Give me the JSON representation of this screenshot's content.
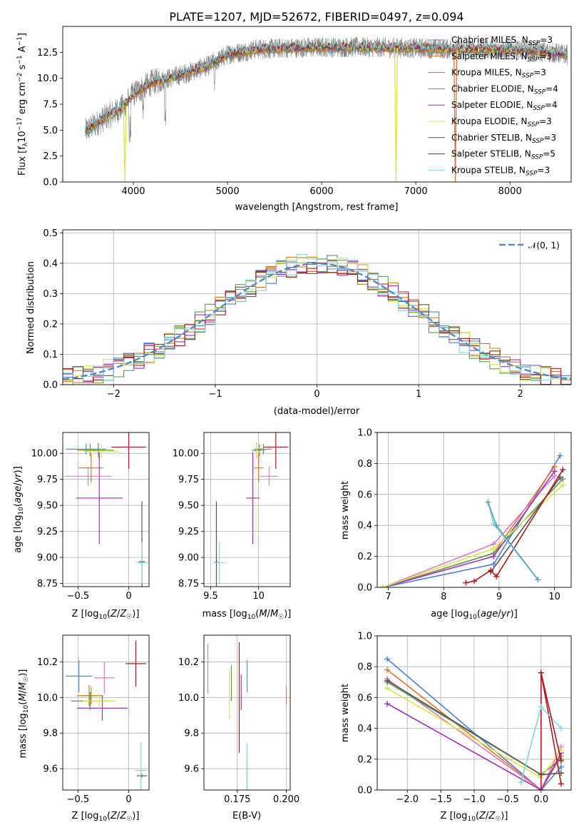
{
  "figure": {
    "title": "PLATE=1207, MJD=52672, FIBERID=0497, z=0.094",
    "models": [
      {
        "name": "Chabrier MILES",
        "nssp": 3,
        "color": "#4e97c7"
      },
      {
        "name": "Salpeter MILES",
        "nssp": 3,
        "color": "#e8732a"
      },
      {
        "name": "Kroupa MILES",
        "nssp": 3,
        "color": "#b8860b"
      },
      {
        "name": "Chabrier ELODIE",
        "nssp": 4,
        "color": "#5e9a56"
      },
      {
        "name": "Salpeter ELODIE",
        "nssp": 4,
        "color": "#a12fbf"
      },
      {
        "name": "Kroupa ELODIE",
        "nssp": 3,
        "color": "#d8e64a"
      },
      {
        "name": "Chabrier STELIB",
        "nssp": 3,
        "color": "#555555"
      },
      {
        "name": "Salpeter STELIB",
        "nssp": 5,
        "color": "#b01818"
      },
      {
        "name": "Kroupa STELIB",
        "nssp": 3,
        "color": "#7fd6de"
      }
    ]
  },
  "chart_data": [
    {
      "id": "spectrum",
      "type": "line",
      "xlabel": "wavelength [Angstrom, rest frame]",
      "ylabel": "Flux [f_λ10^-17 erg cm^-2 s^-1 A^-1]",
      "xlim": [
        3250,
        8650
      ],
      "ylim": [
        0,
        15
      ],
      "xticks": [
        4000,
        5000,
        6000,
        7000,
        8000
      ],
      "yticks": [
        "0.0",
        "2.5",
        "5.0",
        "7.5",
        "10.0",
        "12.5"
      ],
      "data_range": [
        3490,
        8610
      ],
      "grid": false,
      "legend_position": "right",
      "legend_entries": [
        "Chabrier MILES, N_SSP=3",
        "Salpeter MILES, N_SSP=3",
        "Kroupa MILES, N_SSP=3",
        "Chabrier ELODIE, N_SSP=4",
        "Salpeter ELODIE, N_SSP=4",
        "Kroupa ELODIE, N_SSP=3",
        "Chabrier STELIB, N_SSP=3",
        "Salpeter STELIB, N_SSP=5",
        "Kroupa STELIB, N_SSP=3"
      ],
      "continuum": [
        [
          3490,
          4.9
        ],
        [
          3700,
          6.2
        ],
        [
          3900,
          7.3
        ],
        [
          4000,
          8.5
        ],
        [
          4200,
          9.6
        ],
        [
          4500,
          10.3
        ],
        [
          4800,
          11.2
        ],
        [
          5000,
          12.3
        ],
        [
          5300,
          12.8
        ],
        [
          5600,
          12.9
        ],
        [
          6000,
          13.0
        ],
        [
          6500,
          13.0
        ],
        [
          7000,
          12.9
        ],
        [
          7500,
          12.8
        ],
        [
          8000,
          12.8
        ],
        [
          8300,
          12.6
        ],
        [
          8610,
          12.3
        ]
      ],
      "drops": [
        {
          "x": 3910,
          "model": "Kroupa ELODIE",
          "bottom": 0.0
        },
        {
          "x": 6790,
          "model": "Kroupa ELODIE",
          "bottom": 0.0
        },
        {
          "x": 7420,
          "model": "Salpeter MILES",
          "bottom": 0.0
        }
      ]
    },
    {
      "id": "residual-histogram",
      "type": "bar",
      "xlabel": "(data-model)/error",
      "ylabel": "Normed distribution",
      "xlim": [
        -2.5,
        2.5
      ],
      "ylim": [
        0,
        0.51
      ],
      "xticks": [
        -2,
        -1,
        0,
        1,
        2
      ],
      "yticks": [
        "0.0",
        "0.1",
        "0.2",
        "0.3",
        "0.4",
        "0.5"
      ],
      "grid": true,
      "legend": "𝒩(0, 1)",
      "reference": {
        "type": "normal",
        "mean": 0,
        "sigma": 1
      }
    },
    {
      "id": "age-vs-Z",
      "type": "scatter",
      "xlabel": "Z [log10(Z/Z☉)]",
      "ylabel": "age  [log10(age/yr)]",
      "xlim": [
        -0.65,
        0.2
      ],
      "ylim": [
        8.72,
        10.2
      ],
      "xticks": [
        -0.5,
        0.0
      ],
      "yticks": [
        "8.75",
        "9.00",
        "9.25",
        "9.50",
        "9.75",
        "10.00"
      ],
      "grid": true,
      "points": [
        {
          "model": "Chabrier MILES",
          "x": -0.42,
          "xerr": 0.2,
          "y": 10.04,
          "yerr": 0.05
        },
        {
          "model": "Salpeter MILES",
          "x": -0.37,
          "xerr": 0.12,
          "y": 9.86,
          "yerr": 0.14
        },
        {
          "model": "Kroupa MILES",
          "x": -0.38,
          "xerr": 0.13,
          "y": 10.03,
          "yerr": 0.06
        },
        {
          "model": "Chabrier ELODIE",
          "x": -0.3,
          "xerr": 0.15,
          "y": 10.03,
          "yerr": 0.07
        },
        {
          "model": "Salpeter ELODIE",
          "x": -0.29,
          "xerr": 0.23,
          "y": 9.57,
          "yerr": 0.44
        },
        {
          "model": "Kroupa ELODIE",
          "x": -0.27,
          "xerr": 0.17,
          "y": 10.02,
          "yerr": 0.07
        },
        {
          "model": "Chabrier STELIB",
          "x": 0.13,
          "xerr": 0.03,
          "y": 8.96,
          "yerr": 0.58
        },
        {
          "model": "Salpeter STELIB",
          "x": 0.0,
          "xerr": 0.17,
          "y": 10.06,
          "yerr": 0.21
        },
        {
          "model": "Kroupa STELIB",
          "x": 0.13,
          "xerr": 0.06,
          "y": 8.95,
          "yerr": 0.2
        },
        {
          "model": "Kroupa STELIB",
          "x": -0.4,
          "xerr": 0.23,
          "y": 9.78,
          "yerr": 0.09,
          "color": "#e377c2"
        }
      ]
    },
    {
      "id": "age-vs-mass",
      "type": "scatter",
      "xlabel": "mass [log10(M/M☉)]",
      "ylabel": "",
      "xlim": [
        9.43,
        10.33
      ],
      "ylim": [
        8.72,
        10.2
      ],
      "xticks": [
        9.5,
        10.0
      ],
      "yticks": [
        "8.75",
        "9.00",
        "9.25",
        "9.50",
        "9.75",
        "10.00"
      ],
      "grid": true,
      "points": [
        {
          "model": "Chabrier MILES",
          "x": 10.05,
          "xerr": 0.09,
          "y": 10.04,
          "yerr": 0.05
        },
        {
          "model": "Salpeter MILES",
          "x": 10.0,
          "xerr": 0.05,
          "y": 9.86,
          "yerr": 0.14
        },
        {
          "model": "Kroupa MILES",
          "x": 10.01,
          "xerr": 0.06,
          "y": 10.03,
          "yerr": 0.06
        },
        {
          "model": "Chabrier ELODIE",
          "x": 9.98,
          "xerr": 0.05,
          "y": 10.03,
          "yerr": 0.07
        },
        {
          "model": "Salpeter ELODIE",
          "x": 9.94,
          "xerr": 0.07,
          "y": 9.57,
          "yerr": 0.44
        },
        {
          "model": "Kroupa ELODIE",
          "x": 9.98,
          "xerr": 0.04,
          "y": 10.02,
          "yerr": 0.07
        },
        {
          "model": "Chabrier STELIB",
          "x": 9.56,
          "xerr": 0.01,
          "y": 8.96,
          "yerr": 0.58
        },
        {
          "model": "Salpeter STELIB",
          "x": 10.18,
          "xerr": 0.13,
          "y": 10.06,
          "yerr": 0.21
        },
        {
          "model": "Kroupa STELIB",
          "x": 9.59,
          "xerr": 0.06,
          "y": 8.95,
          "yerr": 0.2
        },
        {
          "model": "Kroupa STELIB",
          "x": 10.11,
          "xerr": 0.09,
          "y": 9.78,
          "yerr": 0.09,
          "color": "#e377c2"
        }
      ]
    },
    {
      "id": "massweight-vs-age",
      "type": "line",
      "xlabel": "age  [log10(age/yr)]",
      "ylabel": "mass weight",
      "xlim": [
        6.8,
        10.3
      ],
      "ylim": [
        0,
        1.0
      ],
      "xticks": [
        7,
        8,
        9,
        10
      ],
      "yticks": [
        "0.0",
        "0.2",
        "0.4",
        "0.6",
        "0.8",
        "1.0"
      ],
      "grid": true,
      "series": [
        {
          "model": "Chabrier MILES",
          "color": "#4e7fd7",
          "points": [
            [
              6.9,
              0.0
            ],
            [
              8.9,
              0.15
            ],
            [
              10.1,
              0.85
            ]
          ]
        },
        {
          "model": "Salpeter MILES",
          "color": "#e8732a",
          "points": [
            [
              6.9,
              0.0
            ],
            [
              8.9,
              0.22
            ],
            [
              10.0,
              0.78
            ]
          ]
        },
        {
          "model": "Kroupa MILES",
          "color": "#e377c2",
          "points": [
            [
              6.9,
              0.0
            ],
            [
              8.9,
              0.28
            ],
            [
              10.0,
              0.72
            ]
          ]
        },
        {
          "model": "Chabrier ELODIE",
          "color": "#5e9a56",
          "points": [
            [
              6.9,
              0.0
            ],
            [
              8.9,
              0.22
            ],
            [
              10.15,
              0.7
            ]
          ]
        },
        {
          "model": "Salpeter ELODIE",
          "color": "#a12fbf",
          "points": [
            [
              6.9,
              0.0
            ],
            [
              8.9,
              0.2
            ],
            [
              10.0,
              0.75
            ]
          ]
        },
        {
          "model": "Kroupa ELODIE",
          "color": "#d8e64a",
          "points": [
            [
              6.9,
              0.0
            ],
            [
              8.9,
              0.25
            ],
            [
              10.15,
              0.66
            ]
          ]
        },
        {
          "model": "Chabrier STELIB",
          "color": "#555555",
          "points": [
            [
              8.85,
              0.1
            ],
            [
              10.1,
              0.71
            ]
          ]
        },
        {
          "model": "Salpeter STELIB",
          "color": "#b01818",
          "points": [
            [
              8.4,
              0.03
            ],
            [
              8.55,
              0.04
            ],
            [
              8.85,
              0.11
            ],
            [
              8.95,
              0.07
            ],
            [
              10.15,
              0.76
            ]
          ]
        },
        {
          "model": "Kroupa STELIB",
          "color": "#7fd6de",
          "points": [
            [
              8.8,
              0.55
            ],
            [
              8.9,
              0.41
            ],
            [
              9.7,
              0.05
            ]
          ]
        },
        {
          "model": "Chabrier STELIB (2)",
          "color": "#5aa0b0",
          "points": [
            [
              8.8,
              0.55
            ],
            [
              8.95,
              0.4
            ],
            [
              9.7,
              0.05
            ]
          ]
        }
      ]
    },
    {
      "id": "mass-vs-Z",
      "type": "scatter",
      "xlabel": "Z [log10(Z/Z☉)]",
      "ylabel": "mass [log10(M/M☉)]",
      "xlim": [
        -0.65,
        0.2
      ],
      "ylim": [
        9.48,
        10.35
      ],
      "xticks": [
        -0.5,
        0.0
      ],
      "yticks": [
        "9.6",
        "9.8",
        "10.0",
        "10.2"
      ],
      "grid": true,
      "points": [
        {
          "model": "Chabrier MILES",
          "x": -0.49,
          "xerr": 0.13,
          "y": 10.12,
          "yerr": 0.09
        },
        {
          "model": "Salpeter MILES",
          "x": -0.37,
          "xerr": 0.12,
          "y": 10.01,
          "yerr": 0.05
        },
        {
          "model": "Kroupa MILES",
          "x": -0.39,
          "xerr": 0.12,
          "y": 10.01,
          "yerr": 0.06
        },
        {
          "model": "Chabrier ELODIE",
          "x": -0.38,
          "xerr": 0.19,
          "y": 9.98,
          "yerr": 0.05
        },
        {
          "model": "Salpeter ELODIE",
          "x": -0.26,
          "xerr": 0.25,
          "y": 9.94,
          "yerr": 0.07
        },
        {
          "model": "Kroupa ELODIE",
          "x": -0.29,
          "xerr": 0.16,
          "y": 9.98,
          "yerr": 0.04
        },
        {
          "model": "Chabrier STELIB",
          "x": 0.13,
          "xerr": 0.05,
          "y": 9.56,
          "yerr": 0.01
        },
        {
          "model": "Salpeter STELIB",
          "x": 0.07,
          "xerr": 0.1,
          "y": 10.19,
          "yerr": 0.13
        },
        {
          "model": "Kroupa STELIB",
          "x": 0.12,
          "xerr": 0.06,
          "y": 9.59,
          "yerr": 0.16
        },
        {
          "model": "Kroupa STELIB",
          "x": -0.24,
          "xerr": 0.1,
          "y": 10.11,
          "yerr": 0.09,
          "color": "#e377c2"
        }
      ]
    },
    {
      "id": "mass-vs-ebv",
      "type": "scatter",
      "xlabel": "E(B-V)",
      "ylabel": "",
      "xlim": [
        0.158,
        0.202
      ],
      "ylim": [
        9.48,
        10.35
      ],
      "xticks": [
        "0.175",
        "0.200"
      ],
      "yticks": [
        "9.6",
        "9.8",
        "10.0",
        "10.2"
      ],
      "grid": true,
      "points": [
        {
          "model": "Chabrier MILES",
          "x": 0.18,
          "y": 10.12,
          "yerr": 0.09
        },
        {
          "model": "Salpeter MILES",
          "x": 0.2,
          "y": 10.01,
          "yerr": 0.05
        },
        {
          "model": "Kroupa MILES",
          "x": 0.16,
          "y": 10.16,
          "yerr": 0.14,
          "color": "#e377c2"
        },
        {
          "model": "Chabrier ELODIE",
          "x": 0.172,
          "y": 10.08,
          "yerr": 0.1
        },
        {
          "model": "Salpeter ELODIE",
          "x": 0.177,
          "y": 10.03,
          "yerr": 0.1
        },
        {
          "model": "Kroupa ELODIE",
          "x": 0.171,
          "y": 10.02,
          "yerr": 0.14
        },
        {
          "model": "Chabrier STELIB",
          "x": 0.18,
          "y": 9.57,
          "yerr": 0.09
        },
        {
          "model": "Salpeter STELIB",
          "x": 0.176,
          "y": 10.0,
          "yerr": 0.31
        },
        {
          "model": "Kroupa STELIB",
          "x": 0.18,
          "y": 9.6,
          "yerr": 0.14
        }
      ]
    },
    {
      "id": "massweight-vs-Z",
      "type": "line",
      "xlabel": "Z [log10(Z/Z☉)]",
      "ylabel": "mass weight",
      "xlim": [
        -2.45,
        0.45
      ],
      "ylim": [
        0,
        1.0
      ],
      "xticks": [
        "−2.0",
        "−1.5",
        "−1.0",
        "−0.5",
        "0.0"
      ],
      "yticks": [
        "0.0",
        "0.2",
        "0.4",
        "0.6",
        "0.8",
        "1.0"
      ],
      "grid": true,
      "series": [
        {
          "model": "Chabrier MILES",
          "color": "#4e7fd7",
          "points": [
            [
              -2.3,
              0.85
            ],
            [
              0.0,
              0.0
            ],
            [
              0.3,
              0.15
            ]
          ]
        },
        {
          "model": "Salpeter MILES",
          "color": "#e8732a",
          "points": [
            [
              -2.3,
              0.78
            ],
            [
              0.0,
              0.0
            ],
            [
              0.3,
              0.22
            ]
          ]
        },
        {
          "model": "Kroupa MILES",
          "color": "#e377c2",
          "points": [
            [
              -2.3,
              0.72
            ],
            [
              0.0,
              0.0
            ],
            [
              0.3,
              0.28
            ]
          ]
        },
        {
          "model": "Chabrier ELODIE",
          "color": "#5e9a56",
          "points": [
            [
              -2.3,
              0.7
            ],
            [
              0.0,
              0.1
            ],
            [
              0.3,
              0.2
            ]
          ]
        },
        {
          "model": "Salpeter ELODIE",
          "color": "#a12fbf",
          "points": [
            [
              -2.3,
              0.56
            ],
            [
              0.0,
              0.0
            ],
            [
              0.3,
              0.24
            ]
          ]
        },
        {
          "model": "Kroupa ELODIE",
          "color": "#d8e64a",
          "points": [
            [
              -2.3,
              0.66
            ],
            [
              0.0,
              0.08
            ],
            [
              0.3,
              0.26
            ]
          ]
        },
        {
          "model": "Chabrier STELIB",
          "color": "#555555",
          "points": [
            [
              -2.3,
              0.71
            ],
            [
              0.0,
              0.1
            ],
            [
              0.3,
              0.11
            ]
          ]
        },
        {
          "model": "Salpeter STELIB",
          "color": "#b01818",
          "points": [
            [
              0.0,
              0.0
            ],
            [
              0.0,
              0.76
            ],
            [
              0.3,
              0.04
            ]
          ]
        },
        {
          "model": "Kroupa STELIB",
          "color": "#7fd6de",
          "points": [
            [
              -0.3,
              0.05
            ],
            [
              0.0,
              0.54
            ],
            [
              0.3,
              0.4
            ]
          ]
        },
        {
          "model": "Salpeter STELIB (2)",
          "color": "#b01818",
          "points": [
            [
              0.0,
              0.76
            ],
            [
              0.3,
              0.19
            ]
          ]
        }
      ]
    }
  ]
}
